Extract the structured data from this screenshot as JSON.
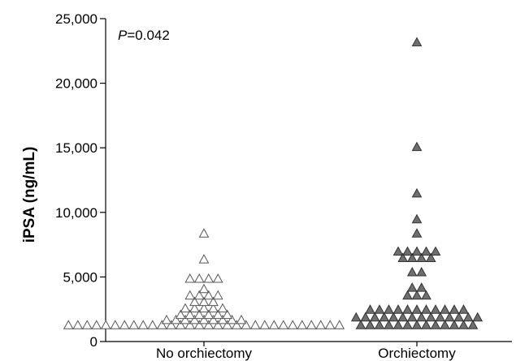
{
  "chart_data": {
    "type": "scatter",
    "ylabel": "iPSA (ng/mL)",
    "ylim": [
      0,
      25000
    ],
    "yticks": [
      "0",
      "5,000",
      "10,000",
      "15,000",
      "20,000",
      "25,000"
    ],
    "categories": [
      "No orchiectomy",
      "Orchiectomy"
    ],
    "annotation": {
      "italic": "P",
      "rest": "=0.042"
    },
    "grid": false,
    "marker_colors": {
      "No orchiectomy": "#ffffff",
      "Orchiectomy": "#6e6e6e"
    },
    "series": [
      {
        "category": "No orchiectomy",
        "marker": "open-triangle",
        "values": [
          8400,
          6400,
          4900,
          4900,
          4900,
          4900,
          4100,
          3600,
          3600,
          3600,
          3600,
          3100,
          3100,
          3100,
          2600,
          2600,
          2600,
          2600,
          2600,
          2100,
          2100,
          2100,
          2100,
          2100,
          2100,
          1700,
          1700,
          1700,
          1700,
          1700,
          1700,
          1700,
          1700,
          1700,
          1300,
          1300,
          1300,
          1300,
          1300,
          1300,
          1300,
          1300,
          1300,
          1300,
          1300,
          1300,
          1300,
          1300,
          1300,
          1300,
          1300,
          1300,
          1300,
          1300,
          1300,
          1300,
          1300,
          1300,
          1300,
          1300,
          1300,
          1300,
          1300,
          1300
        ]
      },
      {
        "category": "Orchiectomy",
        "marker": "filled-triangle",
        "values": [
          23200,
          15100,
          11500,
          9500,
          8400,
          7000,
          7000,
          7000,
          7000,
          7000,
          6500,
          6500,
          6500,
          6500,
          5400,
          5400,
          4200,
          4200,
          3600,
          3600,
          3600,
          2500,
          2500,
          2500,
          2500,
          2500,
          2500,
          2500,
          2500,
          2500,
          2500,
          2500,
          1900,
          1900,
          1900,
          1900,
          1900,
          1900,
          1900,
          1900,
          1900,
          1900,
          1900,
          1900,
          1900,
          1900,
          1300,
          1300,
          1300,
          1300,
          1300,
          1300,
          1300,
          1300,
          1300,
          1300,
          1300,
          1300,
          1300
        ]
      }
    ]
  }
}
